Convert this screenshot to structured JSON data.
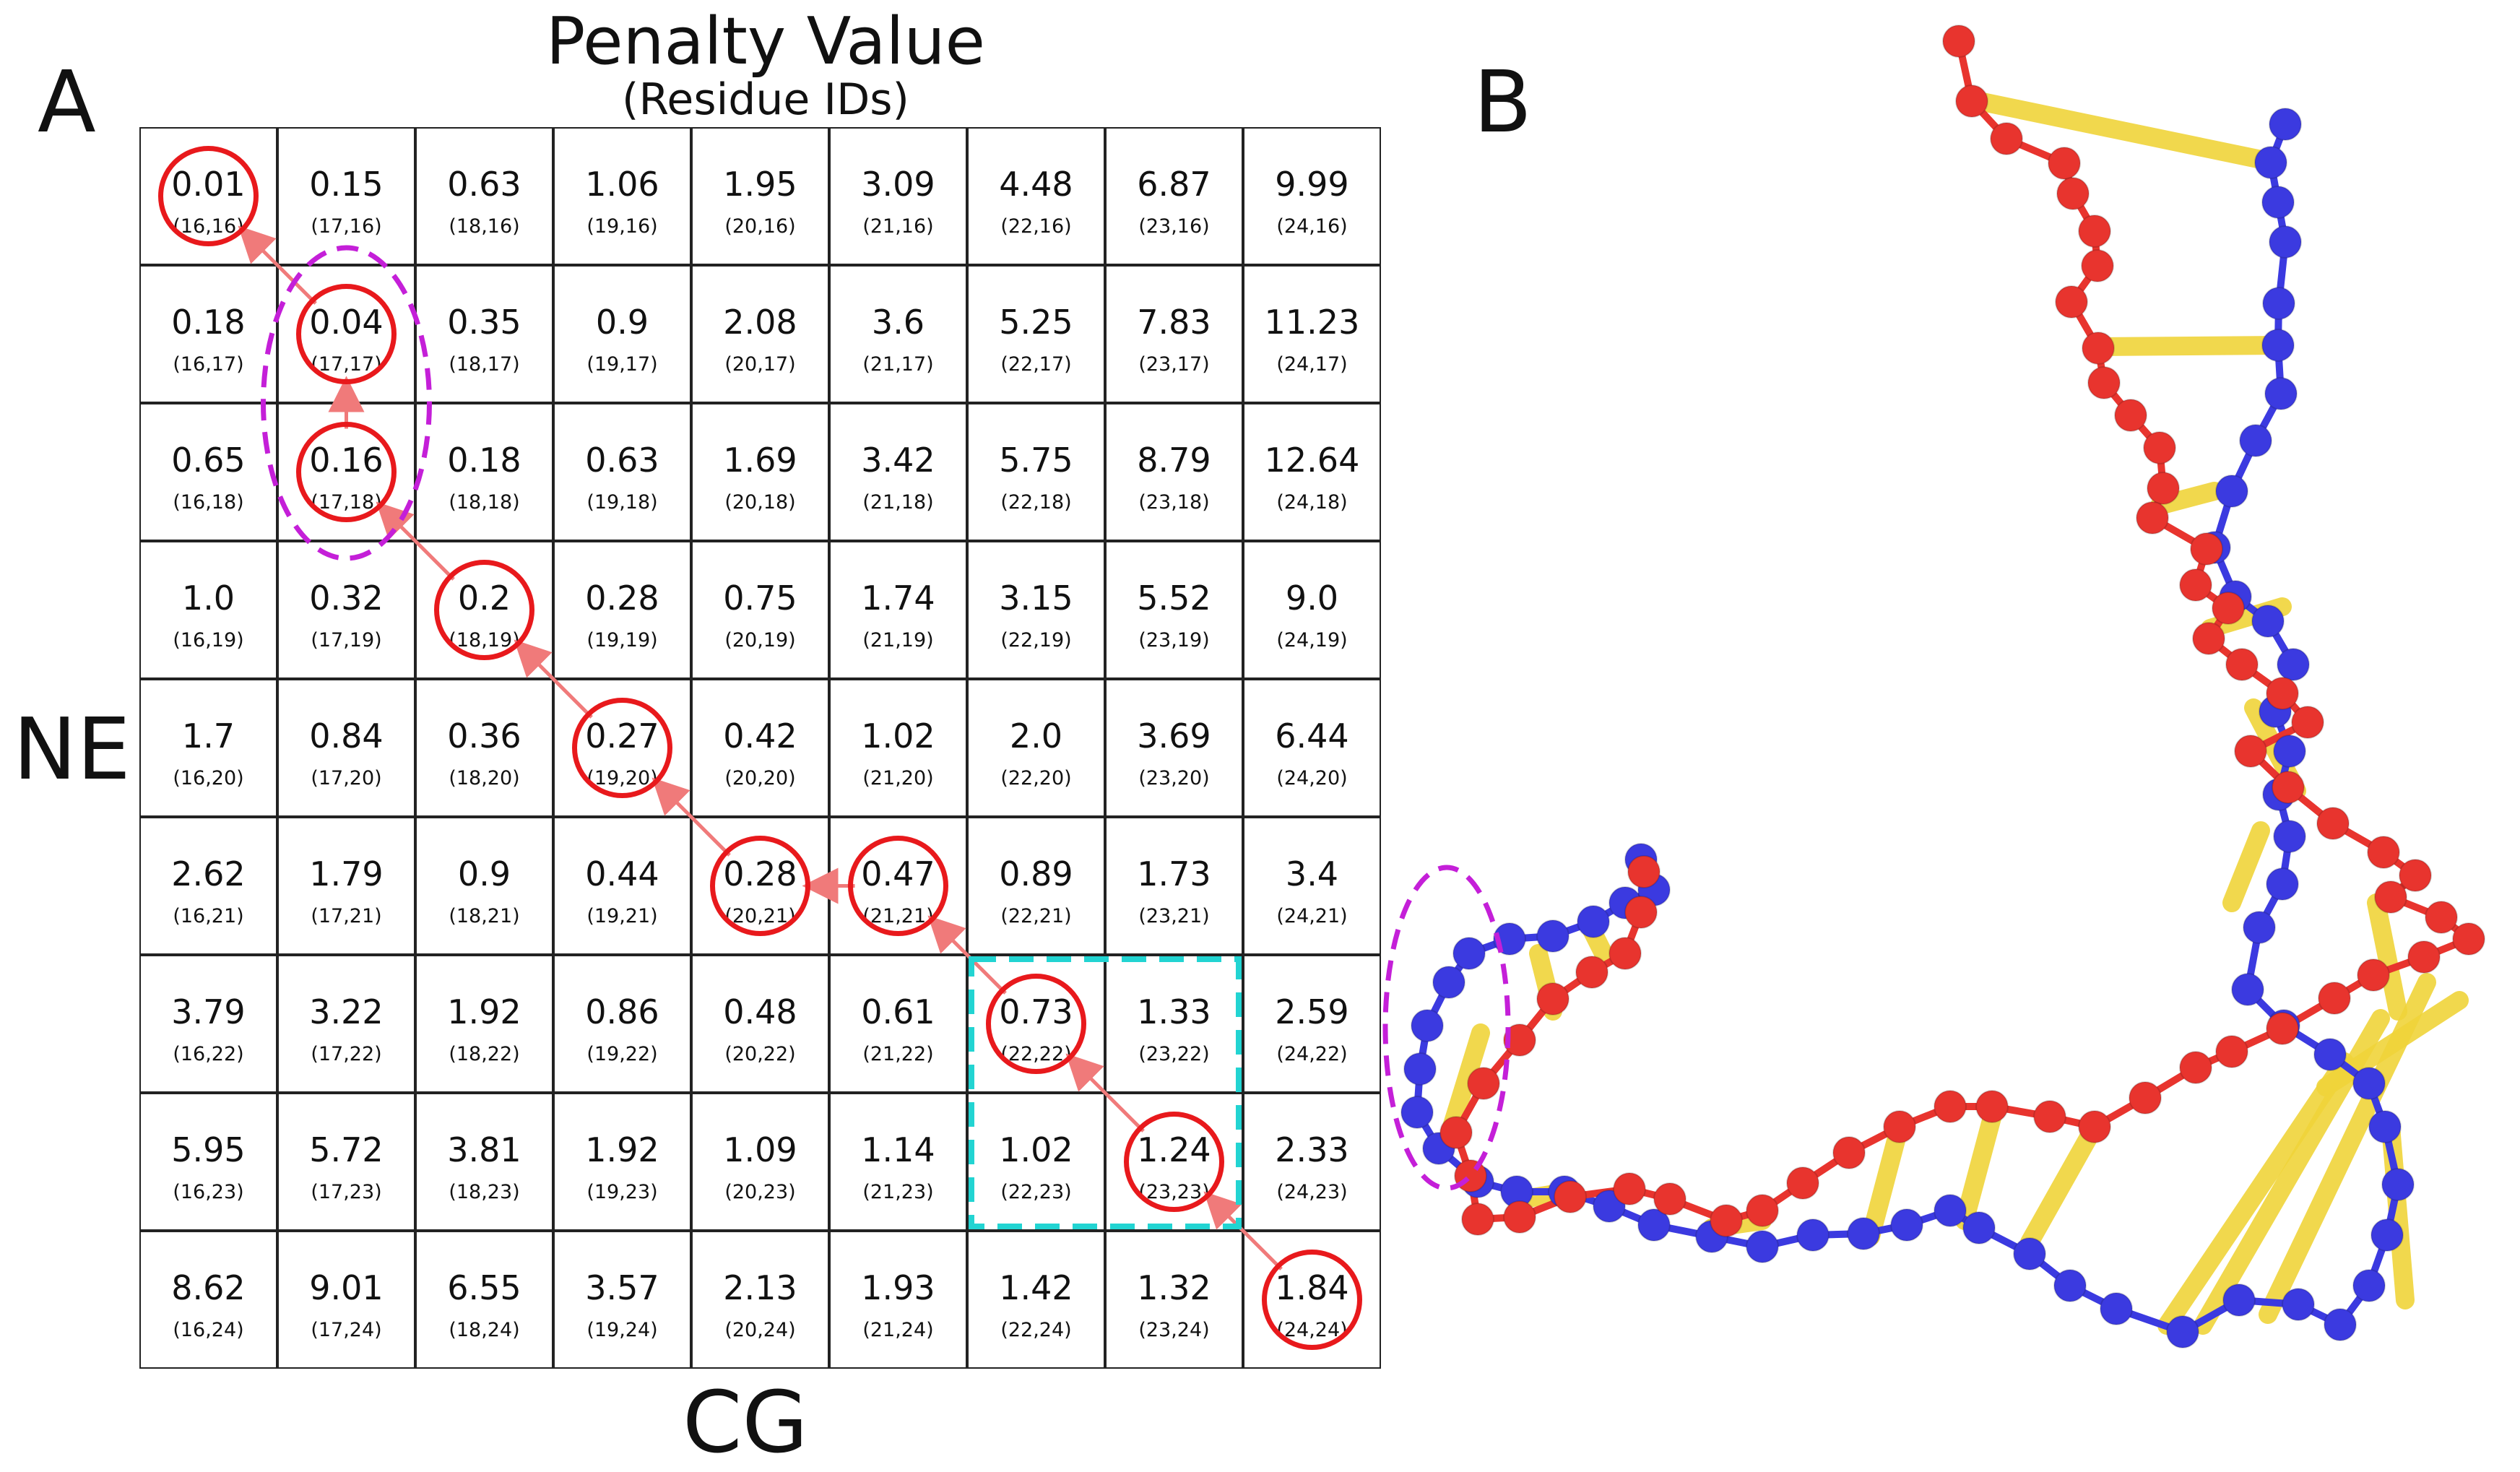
{
  "panel_a": {
    "letter": "A",
    "title": "Penalty Value",
    "subtitle": "(Residue IDs)",
    "y_label": "NE",
    "x_label": "CG",
    "rows": [
      {
        "cells": [
          {
            "value": "0.01",
            "ids": "(16,16)"
          },
          {
            "value": "0.15",
            "ids": "(17,16)"
          },
          {
            "value": "0.63",
            "ids": "(18,16)"
          },
          {
            "value": "1.06",
            "ids": "(19,16)"
          },
          {
            "value": "1.95",
            "ids": "(20,16)"
          },
          {
            "value": "3.09",
            "ids": "(21,16)"
          },
          {
            "value": "4.48",
            "ids": "(22,16)"
          },
          {
            "value": "6.87",
            "ids": "(23,16)"
          },
          {
            "value": "9.99",
            "ids": "(24,16)"
          }
        ]
      },
      {
        "cells": [
          {
            "value": "0.18",
            "ids": "(16,17)"
          },
          {
            "value": "0.04",
            "ids": "(17,17)"
          },
          {
            "value": "0.35",
            "ids": "(18,17)"
          },
          {
            "value": "0.9",
            "ids": "(19,17)"
          },
          {
            "value": "2.08",
            "ids": "(20,17)"
          },
          {
            "value": "3.6",
            "ids": "(21,17)"
          },
          {
            "value": "5.25",
            "ids": "(22,17)"
          },
          {
            "value": "7.83",
            "ids": "(23,17)"
          },
          {
            "value": "11.23",
            "ids": "(24,17)"
          }
        ]
      },
      {
        "cells": [
          {
            "value": "0.65",
            "ids": "(16,18)"
          },
          {
            "value": "0.16",
            "ids": "(17,18)"
          },
          {
            "value": "0.18",
            "ids": "(18,18)"
          },
          {
            "value": "0.63",
            "ids": "(19,18)"
          },
          {
            "value": "1.69",
            "ids": "(20,18)"
          },
          {
            "value": "3.42",
            "ids": "(21,18)"
          },
          {
            "value": "5.75",
            "ids": "(22,18)"
          },
          {
            "value": "8.79",
            "ids": "(23,18)"
          },
          {
            "value": "12.64",
            "ids": "(24,18)"
          }
        ]
      },
      {
        "cells": [
          {
            "value": "1.0",
            "ids": "(16,19)"
          },
          {
            "value": "0.32",
            "ids": "(17,19)"
          },
          {
            "value": "0.2",
            "ids": "(18,19)"
          },
          {
            "value": "0.28",
            "ids": "(19,19)"
          },
          {
            "value": "0.75",
            "ids": "(20,19)"
          },
          {
            "value": "1.74",
            "ids": "(21,19)"
          },
          {
            "value": "3.15",
            "ids": "(22,19)"
          },
          {
            "value": "5.52",
            "ids": "(23,19)"
          },
          {
            "value": "9.0",
            "ids": "(24,19)"
          }
        ]
      },
      {
        "cells": [
          {
            "value": "1.7",
            "ids": "(16,20)"
          },
          {
            "value": "0.84",
            "ids": "(17,20)"
          },
          {
            "value": "0.36",
            "ids": "(18,20)"
          },
          {
            "value": "0.27",
            "ids": "(19,20)"
          },
          {
            "value": "0.42",
            "ids": "(20,20)"
          },
          {
            "value": "1.02",
            "ids": "(21,20)"
          },
          {
            "value": "2.0",
            "ids": "(22,20)"
          },
          {
            "value": "3.69",
            "ids": "(23,20)"
          },
          {
            "value": "6.44",
            "ids": "(24,20)"
          }
        ]
      },
      {
        "cells": [
          {
            "value": "2.62",
            "ids": "(16,21)"
          },
          {
            "value": "1.79",
            "ids": "(17,21)"
          },
          {
            "value": "0.9",
            "ids": "(18,21)"
          },
          {
            "value": "0.44",
            "ids": "(19,21)"
          },
          {
            "value": "0.28",
            "ids": "(20,21)"
          },
          {
            "value": "0.47",
            "ids": "(21,21)"
          },
          {
            "value": "0.89",
            "ids": "(22,21)"
          },
          {
            "value": "1.73",
            "ids": "(23,21)"
          },
          {
            "value": "3.4",
            "ids": "(24,21)"
          }
        ]
      },
      {
        "cells": [
          {
            "value": "3.79",
            "ids": "(16,22)"
          },
          {
            "value": "3.22",
            "ids": "(17,22)"
          },
          {
            "value": "1.92",
            "ids": "(18,22)"
          },
          {
            "value": "0.86",
            "ids": "(19,22)"
          },
          {
            "value": "0.48",
            "ids": "(20,22)"
          },
          {
            "value": "0.61",
            "ids": "(21,22)"
          },
          {
            "value": "0.73",
            "ids": "(22,22)"
          },
          {
            "value": "1.33",
            "ids": "(23,22)"
          },
          {
            "value": "2.59",
            "ids": "(24,22)"
          }
        ]
      },
      {
        "cells": [
          {
            "value": "5.95",
            "ids": "(16,23)"
          },
          {
            "value": "5.72",
            "ids": "(17,23)"
          },
          {
            "value": "3.81",
            "ids": "(18,23)"
          },
          {
            "value": "1.92",
            "ids": "(19,23)"
          },
          {
            "value": "1.09",
            "ids": "(20,23)"
          },
          {
            "value": "1.14",
            "ids": "(21,23)"
          },
          {
            "value": "1.02",
            "ids": "(22,23)"
          },
          {
            "value": "1.24",
            "ids": "(23,23)"
          },
          {
            "value": "2.33",
            "ids": "(24,23)"
          }
        ]
      },
      {
        "cells": [
          {
            "value": "8.62",
            "ids": "(16,24)"
          },
          {
            "value": "9.01",
            "ids": "(17,24)"
          },
          {
            "value": "6.55",
            "ids": "(18,24)"
          },
          {
            "value": "3.57",
            "ids": "(19,24)"
          },
          {
            "value": "2.13",
            "ids": "(20,24)"
          },
          {
            "value": "1.93",
            "ids": "(21,24)"
          },
          {
            "value": "1.42",
            "ids": "(22,24)"
          },
          {
            "value": "1.32",
            "ids": "(23,24)"
          },
          {
            "value": "1.84",
            "ids": "(24,24)"
          }
        ]
      }
    ],
    "path_cells": [
      "(24,24)",
      "(23,23)",
      "(22,22)",
      "(21,21)",
      "(20,21)",
      "(19,20)",
      "(18,19)",
      "(17,18)",
      "(17,17)",
      "(16,16)"
    ],
    "highlight_dashed_ellipse_cells": [
      "(17,17)",
      "(17,18)"
    ],
    "highlight_dashed_square_cells": [
      "(22,22)",
      "(23,22)",
      "(22,23)",
      "(23,23)"
    ]
  },
  "panel_b": {
    "letter": "B"
  },
  "colors": {
    "path_circle": "#e8191c",
    "path_arrow": "#f07a7a",
    "ellipse_highlight": "#c41fd8",
    "square_highlight": "#22d4d2",
    "strand_red": "#e8342e",
    "strand_blue": "#3b3ae0",
    "rung_yellow": "#f0d43a"
  }
}
